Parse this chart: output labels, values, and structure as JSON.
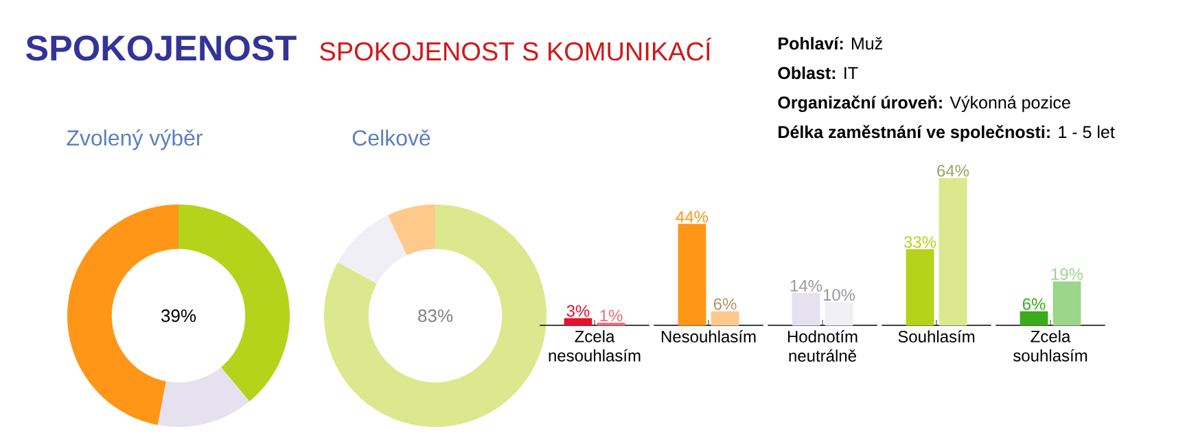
{
  "chart_data": [
    {
      "type": "other",
      "title": "SPOKOJENOST",
      "subtitle": "SPOKOJENOST S KOMUNIKACÍ",
      "annotations": [
        "**Pohlaví:** Muž",
        "**Oblast:** IT",
        "**Organizační úroveň:** Výkonná pozice",
        "**Délka zaměstnání ve společnosti:** 1 - 5 let"
      ]
    },
    {
      "type": "donut",
      "title": "Zvolený výběr",
      "categories": [
        null,
        null,
        null
      ],
      "values": [
        39,
        14,
        47
      ],
      "colors": [
        "#b5d31a",
        "#e5e1ee",
        "#ff9617"
      ],
      "annotations": [
        "39%"
      ]
    },
    {
      "type": "donut",
      "title": "Celkově",
      "categories": [
        null,
        null,
        null
      ],
      "values": [
        83,
        10,
        7
      ],
      "colors": [
        "#dbe88e",
        "#f1eff6",
        "#ffc98c"
      ],
      "annotations": [
        "83%"
      ]
    },
    {
      "type": "bar",
      "categories": [
        "Zcela nesouhlasím",
        "Nesouhlasím",
        "Hodnotím neutrálně",
        "Souhlasím",
        "Zcela souhlasím"
      ],
      "series": [
        {
          "values": [
            3,
            44,
            14,
            33,
            6
          ],
          "colors": [
            "#e8112d",
            "#ff9617",
            "#e5e1ee",
            "#b5d31a",
            "#3aab1a"
          ],
          "value_labels": [
            "3%",
            "44%",
            "14%",
            "33%",
            "6%"
          ]
        },
        {
          "values": [
            1,
            6,
            10,
            64,
            19
          ],
          "colors": [
            "#ef6b7a",
            "#ffc98c",
            "#f1eff6",
            "#dbe88e",
            "#9bd68a"
          ],
          "value_labels": [
            "1%",
            "6%",
            "10%",
            "64%",
            "19%"
          ]
        }
      ]
    }
  ]
}
